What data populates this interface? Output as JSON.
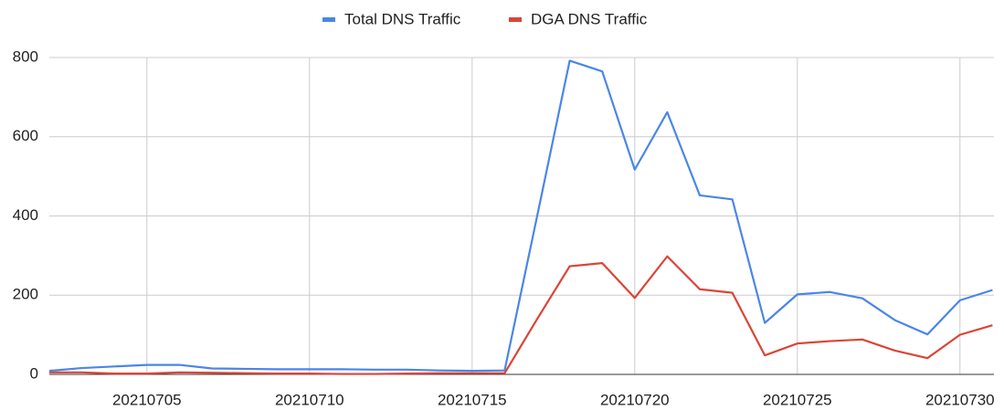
{
  "chart_data": {
    "type": "line",
    "categories": [
      null,
      null,
      null,
      "20210705",
      null,
      null,
      null,
      null,
      "20210710",
      null,
      null,
      null,
      null,
      "20210715",
      null,
      null,
      null,
      null,
      "20210720",
      null,
      null,
      null,
      null,
      "20210725",
      null,
      null,
      null,
      null,
      "20210730",
      null
    ],
    "series": [
      {
        "name": "Total DNS Traffic",
        "color": "#4a86e8",
        "values": [
          9,
          16,
          20,
          24,
          24,
          15,
          14,
          13,
          13,
          13,
          12,
          12,
          10,
          9,
          10,
          400,
          792,
          765,
          517,
          662,
          452,
          442,
          130,
          202,
          208,
          192,
          137,
          101,
          187,
          213
        ]
      },
      {
        "name": "DGA DNS Traffic",
        "color": "#db4437",
        "values": [
          5,
          5,
          2,
          2,
          5,
          4,
          3,
          2,
          2,
          1,
          1,
          2,
          3,
          3,
          3,
          140,
          273,
          281,
          193,
          298,
          215,
          206,
          48,
          78,
          84,
          88,
          60,
          41,
          100,
          124
        ]
      }
    ],
    "ylim": [
      0,
      800
    ],
    "yticks": [
      0,
      200,
      400,
      600,
      800
    ],
    "grid": true,
    "legend": "top"
  }
}
